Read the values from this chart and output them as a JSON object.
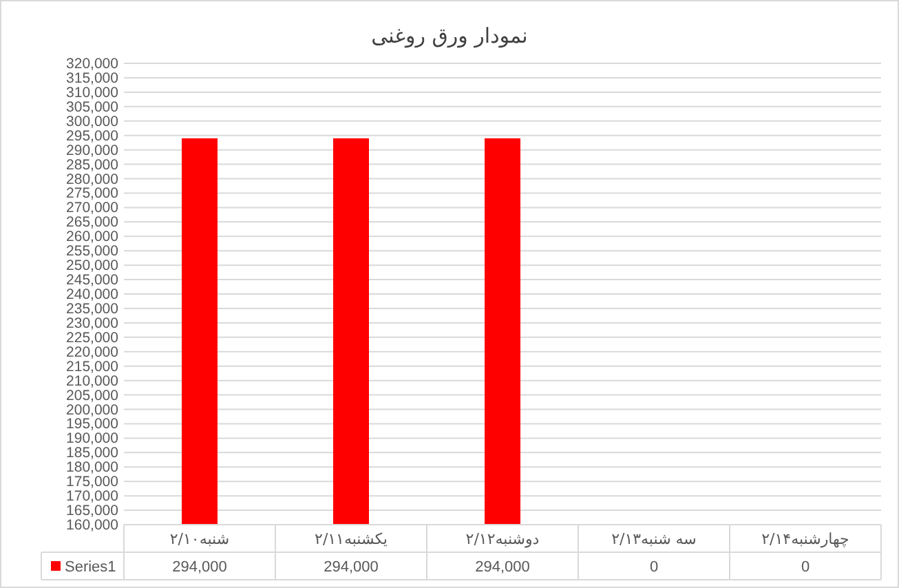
{
  "chart_data": {
    "type": "bar",
    "title": "نمودار ورق روغنی",
    "categories": [
      "شنبه۲/۱۰",
      "یکشنبه۲/۱۱",
      "دوشنبه۲/۱۲",
      "سه شنبه۲/۱۳",
      "چهارشنبه۲/۱۴"
    ],
    "series": [
      {
        "name": "Series1",
        "color": "#ff0000",
        "values": [
          294000,
          294000,
          294000,
          null,
          null
        ],
        "value_labels": [
          "294,000",
          "294,000",
          "294,000",
          "0",
          "0"
        ]
      }
    ],
    "ylim": [
      160000,
      320000
    ],
    "yticks": [
      {
        "value": 160000,
        "label": "160,000"
      },
      {
        "value": 165000,
        "label": "165,000"
      },
      {
        "value": 170000,
        "label": "170,000"
      },
      {
        "value": 175000,
        "label": "175,000"
      },
      {
        "value": 180000,
        "label": "180,000"
      },
      {
        "value": 185000,
        "label": "185,000"
      },
      {
        "value": 190000,
        "label": "190,000"
      },
      {
        "value": 195000,
        "label": "195,000"
      },
      {
        "value": 200000,
        "label": "200,000"
      },
      {
        "value": 205000,
        "label": "205,000"
      },
      {
        "value": 210000,
        "label": "210,000"
      },
      {
        "value": 215000,
        "label": "215,000"
      },
      {
        "value": 220000,
        "label": "220,000"
      },
      {
        "value": 225000,
        "label": "225,000"
      },
      {
        "value": 230000,
        "label": "230,000"
      },
      {
        "value": 235000,
        "label": "235,000"
      },
      {
        "value": 240000,
        "label": "240,000"
      },
      {
        "value": 245000,
        "label": "245,000"
      },
      {
        "value": 250000,
        "label": "250,000"
      },
      {
        "value": 255000,
        "label": "255,000"
      },
      {
        "value": 260000,
        "label": "260,000"
      },
      {
        "value": 265000,
        "label": "265,000"
      },
      {
        "value": 270000,
        "label": "270,000"
      },
      {
        "value": 275000,
        "label": "275,000"
      },
      {
        "value": 280000,
        "label": "280,000"
      },
      {
        "value": 285000,
        "label": "285,000"
      },
      {
        "value": 290000,
        "label": "290,000"
      },
      {
        "value": 295000,
        "label": "295,000"
      },
      {
        "value": 300000,
        "label": "300,000"
      },
      {
        "value": 305000,
        "label": "305,000"
      },
      {
        "value": 310000,
        "label": "310,000"
      },
      {
        "value": 315000,
        "label": "315,000"
      },
      {
        "value": 320000,
        "label": "320,000"
      }
    ],
    "grid": "y"
  }
}
